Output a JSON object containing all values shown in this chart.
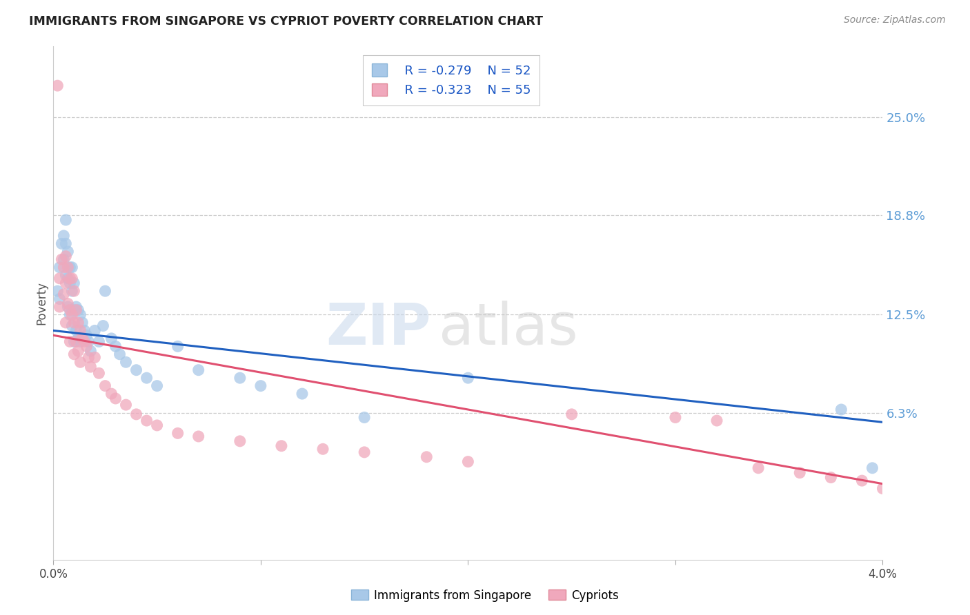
{
  "title": "IMMIGRANTS FROM SINGAPORE VS CYPRIOT POVERTY CORRELATION CHART",
  "source": "Source: ZipAtlas.com",
  "ylabel": "Poverty",
  "right_yticks": [
    "25.0%",
    "18.8%",
    "12.5%",
    "6.3%"
  ],
  "right_ytick_vals": [
    0.25,
    0.188,
    0.125,
    0.063
  ],
  "watermark_zip": "ZIP",
  "watermark_atlas": "atlas",
  "legend_blue_r": "R = -0.279",
  "legend_blue_n": "N = 52",
  "legend_pink_r": "R = -0.323",
  "legend_pink_n": "N = 55",
  "blue_color": "#a8c8e8",
  "pink_color": "#f0a8bc",
  "line_blue_color": "#2060c0",
  "line_pink_color": "#e05070",
  "title_color": "#222222",
  "right_axis_color": "#5b9bd5",
  "background_color": "#ffffff",
  "grid_color": "#cccccc",
  "xlim": [
    0.0,
    0.04
  ],
  "ylim": [
    -0.03,
    0.295
  ],
  "blue_scatter_x": [
    0.0002,
    0.0003,
    0.0003,
    0.0004,
    0.0005,
    0.0005,
    0.0006,
    0.0006,
    0.0006,
    0.0007,
    0.0007,
    0.0007,
    0.0008,
    0.0008,
    0.0008,
    0.0009,
    0.0009,
    0.0009,
    0.001,
    0.001,
    0.001,
    0.0011,
    0.0011,
    0.0012,
    0.0012,
    0.0013,
    0.0013,
    0.0014,
    0.0015,
    0.0016,
    0.0017,
    0.0018,
    0.002,
    0.0022,
    0.0024,
    0.0025,
    0.0028,
    0.003,
    0.0032,
    0.0035,
    0.004,
    0.0045,
    0.005,
    0.006,
    0.007,
    0.009,
    0.01,
    0.012,
    0.015,
    0.02,
    0.038,
    0.0395
  ],
  "blue_scatter_y": [
    0.14,
    0.155,
    0.135,
    0.17,
    0.175,
    0.16,
    0.185,
    0.17,
    0.15,
    0.165,
    0.148,
    0.13,
    0.155,
    0.145,
    0.125,
    0.155,
    0.14,
    0.118,
    0.145,
    0.128,
    0.108,
    0.13,
    0.115,
    0.128,
    0.11,
    0.125,
    0.108,
    0.12,
    0.115,
    0.112,
    0.108,
    0.102,
    0.115,
    0.108,
    0.118,
    0.14,
    0.11,
    0.105,
    0.1,
    0.095,
    0.09,
    0.085,
    0.08,
    0.105,
    0.09,
    0.085,
    0.08,
    0.075,
    0.06,
    0.085,
    0.065,
    0.028
  ],
  "pink_scatter_x": [
    0.0002,
    0.0003,
    0.0003,
    0.0004,
    0.0005,
    0.0005,
    0.0006,
    0.0006,
    0.0006,
    0.0007,
    0.0007,
    0.0008,
    0.0008,
    0.0008,
    0.0009,
    0.0009,
    0.001,
    0.001,
    0.001,
    0.0011,
    0.0011,
    0.0012,
    0.0012,
    0.0013,
    0.0013,
    0.0014,
    0.0015,
    0.0016,
    0.0017,
    0.0018,
    0.002,
    0.0022,
    0.0025,
    0.0028,
    0.003,
    0.0035,
    0.004,
    0.0045,
    0.005,
    0.006,
    0.007,
    0.009,
    0.011,
    0.013,
    0.015,
    0.018,
    0.02,
    0.025,
    0.03,
    0.032,
    0.034,
    0.036,
    0.0375,
    0.039,
    0.04
  ],
  "pink_scatter_y": [
    0.27,
    0.148,
    0.13,
    0.16,
    0.155,
    0.138,
    0.162,
    0.145,
    0.12,
    0.155,
    0.132,
    0.148,
    0.128,
    0.108,
    0.148,
    0.125,
    0.14,
    0.12,
    0.1,
    0.128,
    0.108,
    0.12,
    0.102,
    0.115,
    0.095,
    0.11,
    0.108,
    0.105,
    0.098,
    0.092,
    0.098,
    0.088,
    0.08,
    0.075,
    0.072,
    0.068,
    0.062,
    0.058,
    0.055,
    0.05,
    0.048,
    0.045,
    0.042,
    0.04,
    0.038,
    0.035,
    0.032,
    0.062,
    0.06,
    0.058,
    0.028,
    0.025,
    0.022,
    0.02,
    0.015
  ],
  "blue_line_x": [
    0.0,
    0.04
  ],
  "blue_line_y": [
    0.115,
    0.057
  ],
  "pink_line_x": [
    0.0,
    0.04
  ],
  "pink_line_y": [
    0.112,
    0.018
  ]
}
